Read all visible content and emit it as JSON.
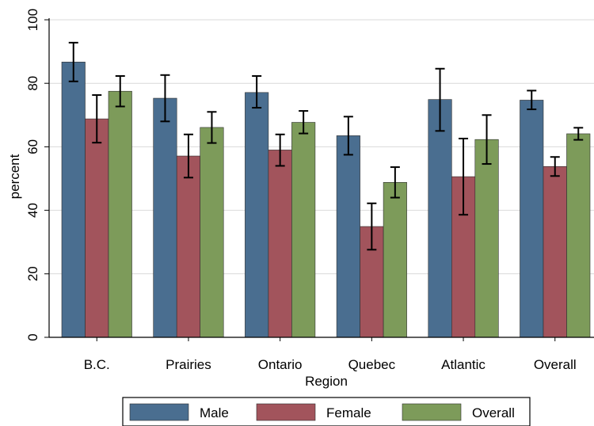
{
  "chart_data": {
    "type": "bar",
    "title": "",
    "xlabel": "Region",
    "ylabel": "percent",
    "ylim": [
      0,
      100
    ],
    "yticks": [
      0,
      20,
      40,
      60,
      80,
      100
    ],
    "grid": true,
    "error_bars": true,
    "legend_position": "bottom",
    "categories": [
      "B.C.",
      "Prairies",
      "Ontario",
      "Quebec",
      "Atlantic",
      "Overall"
    ],
    "series": [
      {
        "name": "Male",
        "color": "#4a6e90",
        "values": [
          86.7,
          75.3,
          77.1,
          63.5,
          74.9,
          74.7
        ],
        "err_low": [
          80.6,
          68.0,
          72.3,
          57.5,
          65.0,
          71.8
        ],
        "err_high": [
          92.8,
          82.6,
          82.3,
          69.5,
          84.6,
          77.7
        ]
      },
      {
        "name": "Female",
        "color": "#a2545c",
        "values": [
          68.8,
          57.1,
          59.0,
          34.9,
          50.6,
          53.8
        ],
        "err_low": [
          61.3,
          50.3,
          54.0,
          27.6,
          38.6,
          50.8
        ],
        "err_high": [
          76.3,
          63.9,
          63.9,
          42.2,
          62.6,
          56.8
        ]
      },
      {
        "name": "Overall",
        "color": "#7d9b5a",
        "values": [
          77.5,
          66.1,
          67.7,
          48.8,
          62.3,
          64.1
        ],
        "err_low": [
          72.7,
          61.2,
          64.2,
          44.0,
          54.6,
          62.2
        ],
        "err_high": [
          82.3,
          71.0,
          71.3,
          53.6,
          70.0,
          66.0
        ]
      }
    ]
  }
}
